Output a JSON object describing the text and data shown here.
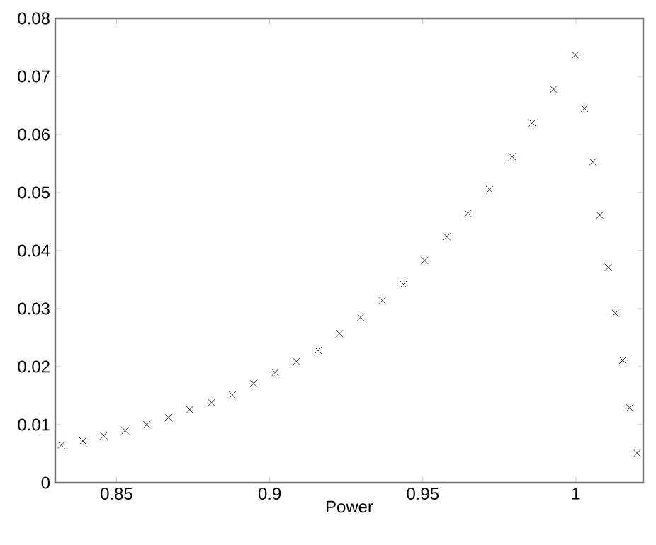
{
  "chart_data": {
    "type": "scatter",
    "xlabel": "Power",
    "marker": "cross",
    "color": "#000000",
    "x": [
      0.832,
      0.839,
      0.8458,
      0.8528,
      0.8599,
      0.867,
      0.8739,
      0.881,
      0.8878,
      0.8948,
      0.9018,
      0.9087,
      0.9158,
      0.9228,
      0.9297,
      0.9368,
      0.9437,
      0.9506,
      0.9579,
      0.9647,
      0.9718,
      0.9792,
      0.9858,
      0.9927,
      0.9998,
      1.0028,
      1.0055,
      1.0078,
      1.0106,
      1.0129,
      1.0153,
      1.0176,
      1.02
    ],
    "values": [
      0.0065,
      0.0072,
      0.0081,
      0.009,
      0.01,
      0.0112,
      0.0126,
      0.0138,
      0.0151,
      0.0171,
      0.019,
      0.0209,
      0.0228,
      0.0257,
      0.0285,
      0.0314,
      0.0342,
      0.0383,
      0.0424,
      0.0464,
      0.0505,
      0.0562,
      0.062,
      0.0678,
      0.0737,
      0.0645,
      0.0553,
      0.0461,
      0.0371,
      0.0292,
      0.0211,
      0.0129,
      0.0051
    ],
    "xlim": [
      0.83,
      1.022
    ],
    "ylim": [
      0,
      0.08
    ],
    "xticks": [
      0.85,
      0.9,
      0.95,
      1
    ],
    "yticks": [
      0,
      0.01,
      0.02,
      0.03,
      0.04,
      0.05,
      0.06,
      0.07,
      0.08
    ]
  }
}
